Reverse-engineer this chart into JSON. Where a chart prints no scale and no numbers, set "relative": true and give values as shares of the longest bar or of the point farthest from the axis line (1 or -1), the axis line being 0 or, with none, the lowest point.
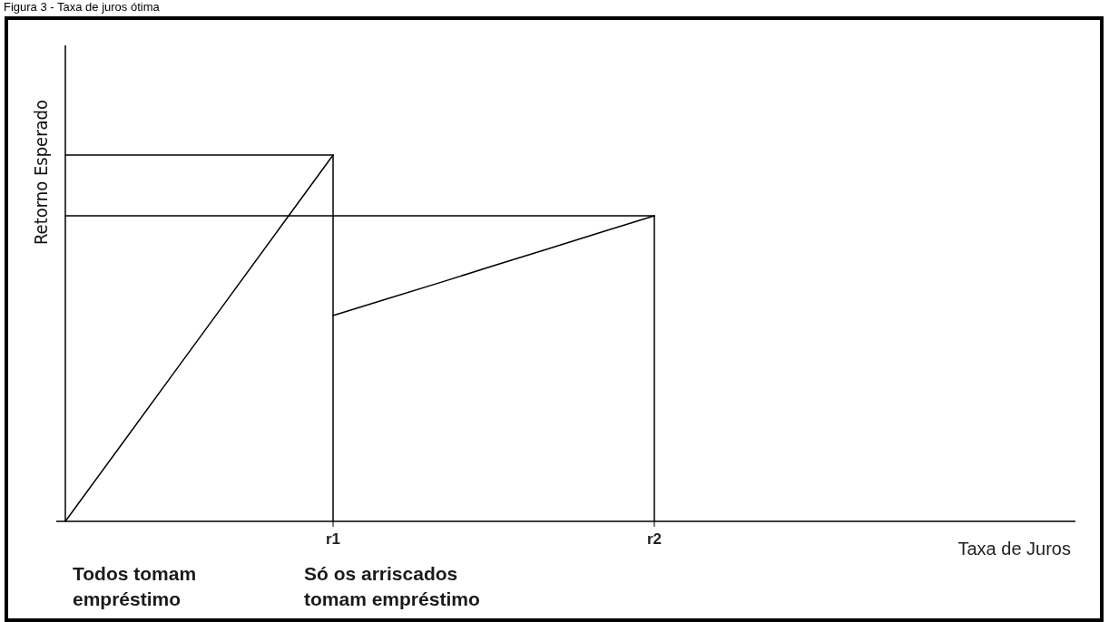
{
  "chart_data": {
    "type": "line",
    "title": "Figura 3 - Taxa de juros ótima",
    "xlabel": "Taxa de Juros",
    "ylabel": "Retorno Esperado",
    "relative": true,
    "categories": [
      null,
      null,
      null,
      null,
      null,
      "r1",
      null,
      null,
      null,
      null,
      null,
      "r2",
      null,
      null,
      null,
      null,
      null,
      null,
      null
    ],
    "series": [
      {
        "color": "#000000",
        "values": [
          0,
          0.2,
          0.4,
          0.6,
          0.8,
          1,
          null,
          null,
          null,
          null,
          null,
          null,
          null,
          null,
          null,
          null,
          null,
          null,
          null
        ]
      },
      {
        "color": "#000000",
        "values": [
          null,
          null,
          null,
          null,
          null,
          0.562,
          0.607,
          0.652,
          0.698,
          0.743,
          0.789,
          0.834,
          null,
          null,
          null,
          null,
          null,
          null,
          null
        ]
      },
      {
        "color": "#000000",
        "values": [
          1,
          1,
          1,
          1,
          1,
          1,
          null,
          null,
          null,
          null,
          null,
          null,
          null,
          null,
          null,
          null,
          null,
          null,
          null
        ]
      },
      {
        "color": "#000000",
        "values": [
          0.834,
          0.834,
          0.834,
          0.834,
          0.834,
          0.834,
          0.834,
          0.834,
          0.834,
          0.834,
          0.834,
          0.834,
          null,
          null,
          null,
          null,
          null,
          null,
          null
        ]
      },
      {
        "color": "#000000",
        "x": [
          "r1",
          "r1"
        ],
        "values": [
          1,
          0
        ]
      },
      {
        "color": "#000000",
        "x": [
          "r2",
          "r2"
        ],
        "values": [
          0.834,
          0
        ]
      }
    ],
    "annotations": [
      "Todos tomam empréstimo",
      "Só os arriscados tomam empréstimo"
    ],
    "marker": "none",
    "line_style": "solid"
  }
}
